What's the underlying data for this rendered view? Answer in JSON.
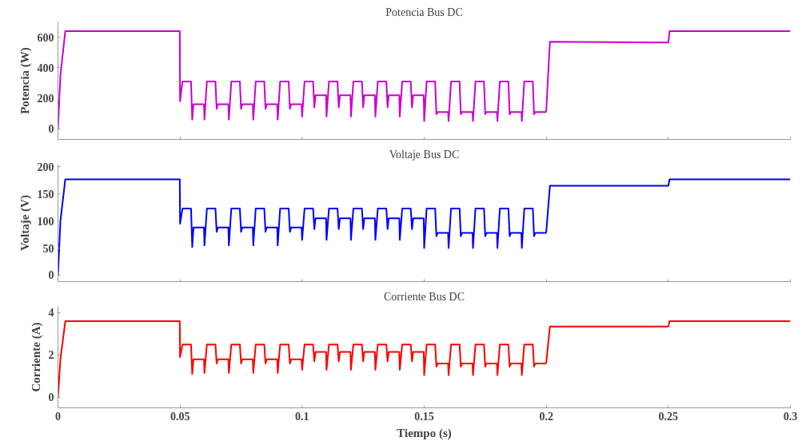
{
  "chart_data": [
    {
      "type": "line",
      "title": "Potencia Bus DC",
      "ylabel": "Potencia (W)",
      "xlim": [
        0,
        0.3
      ],
      "xticks": [
        {
          "value": 0,
          "label": null
        },
        {
          "value": 0.05,
          "label": null
        },
        {
          "value": 0.1,
          "label": null
        },
        {
          "value": 0.15,
          "label": null
        },
        {
          "value": 0.2,
          "label": null
        },
        {
          "value": 0.25,
          "label": null
        },
        {
          "value": 0.3,
          "label": null
        }
      ],
      "ylim": [
        -70,
        700
      ],
      "yticks": [
        0,
        200,
        400,
        600
      ],
      "tick_labels": "y",
      "grid": false,
      "x": [
        0,
        0.001,
        0.003,
        0.0499,
        0.05,
        0.051,
        0.0545,
        0.055,
        0.0555,
        0.0598,
        0.06,
        0.061,
        0.0645,
        0.065,
        0.0655,
        0.0698,
        0.07,
        0.071,
        0.0745,
        0.075,
        0.0755,
        0.0798,
        0.08,
        0.081,
        0.0845,
        0.085,
        0.0855,
        0.0898,
        0.09,
        0.091,
        0.0945,
        0.095,
        0.0955,
        0.0998,
        0.1,
        0.101,
        0.1045,
        0.105,
        0.1055,
        0.1098,
        0.11,
        0.111,
        0.1145,
        0.115,
        0.1155,
        0.1198,
        0.12,
        0.121,
        0.1245,
        0.125,
        0.1255,
        0.1298,
        0.13,
        0.131,
        0.1345,
        0.135,
        0.1355,
        0.1398,
        0.14,
        0.141,
        0.1445,
        0.145,
        0.1455,
        0.1498,
        0.15,
        0.151,
        0.1545,
        0.155,
        0.1555,
        0.1598,
        0.16,
        0.161,
        0.1645,
        0.165,
        0.1655,
        0.1698,
        0.17,
        0.171,
        0.1745,
        0.175,
        0.1755,
        0.1798,
        0.18,
        0.181,
        0.1845,
        0.185,
        0.1855,
        0.1898,
        0.19,
        0.191,
        0.1945,
        0.195,
        0.1955,
        0.1998,
        0.2,
        0.2015,
        0.25,
        0.2505,
        0.3
      ],
      "series": [
        {
          "color": "#cc00cc",
          "values": [
            0,
            350,
            640,
            640,
            180,
            310,
            310,
            60,
            160,
            160,
            60,
            310,
            310,
            130,
            160,
            160,
            60,
            310,
            310,
            130,
            160,
            160,
            60,
            310,
            310,
            130,
            160,
            160,
            60,
            310,
            310,
            130,
            160,
            160,
            80,
            310,
            310,
            140,
            220,
            220,
            80,
            310,
            310,
            140,
            220,
            220,
            80,
            310,
            310,
            140,
            220,
            220,
            80,
            310,
            310,
            140,
            220,
            220,
            80,
            310,
            310,
            140,
            220,
            220,
            50,
            310,
            310,
            95,
            110,
            110,
            50,
            310,
            310,
            95,
            110,
            110,
            50,
            310,
            310,
            95,
            110,
            110,
            50,
            310,
            310,
            95,
            110,
            110,
            50,
            310,
            310,
            95,
            110,
            110,
            120,
            570,
            565,
            640,
            640
          ]
        }
      ]
    },
    {
      "type": "line",
      "title": "Voltaje Bus DC",
      "ylabel": "Voltaje (V)",
      "xlim": [
        0,
        0.3
      ],
      "xticks": [
        {
          "value": 0,
          "label": null
        },
        {
          "value": 0.05,
          "label": null
        },
        {
          "value": 0.1,
          "label": null
        },
        {
          "value": 0.15,
          "label": null
        },
        {
          "value": 0.2,
          "label": null
        },
        {
          "value": 0.25,
          "label": null
        },
        {
          "value": 0.3,
          "label": null
        }
      ],
      "ylim": [
        -12,
        205
      ],
      "yticks": [
        0,
        50,
        100,
        150,
        200
      ],
      "tick_labels": "y",
      "grid": false,
      "x": [
        0,
        0.001,
        0.003,
        0.0499,
        0.05,
        0.051,
        0.0545,
        0.055,
        0.0555,
        0.0598,
        0.06,
        0.061,
        0.0645,
        0.065,
        0.0655,
        0.0698,
        0.07,
        0.071,
        0.0745,
        0.075,
        0.0755,
        0.0798,
        0.08,
        0.081,
        0.0845,
        0.085,
        0.0855,
        0.0898,
        0.09,
        0.091,
        0.0945,
        0.095,
        0.0955,
        0.0998,
        0.1,
        0.101,
        0.1045,
        0.105,
        0.1055,
        0.1098,
        0.11,
        0.111,
        0.1145,
        0.115,
        0.1155,
        0.1198,
        0.12,
        0.121,
        0.1245,
        0.125,
        0.1255,
        0.1298,
        0.13,
        0.131,
        0.1345,
        0.135,
        0.1355,
        0.1398,
        0.14,
        0.141,
        0.1445,
        0.145,
        0.1455,
        0.1498,
        0.15,
        0.151,
        0.1545,
        0.155,
        0.1555,
        0.1598,
        0.16,
        0.161,
        0.1645,
        0.165,
        0.1655,
        0.1698,
        0.17,
        0.171,
        0.1745,
        0.175,
        0.1755,
        0.1798,
        0.18,
        0.181,
        0.1845,
        0.185,
        0.1855,
        0.1898,
        0.19,
        0.191,
        0.1945,
        0.195,
        0.1955,
        0.1998,
        0.2,
        0.2015,
        0.25,
        0.2505,
        0.3
      ],
      "series": [
        {
          "color": "#0000ff",
          "values": [
            0,
            100,
            177,
            177,
            95,
            123,
            123,
            52,
            88,
            88,
            55,
            123,
            123,
            80,
            88,
            88,
            55,
            123,
            123,
            80,
            88,
            88,
            55,
            123,
            123,
            80,
            88,
            88,
            55,
            123,
            123,
            80,
            88,
            88,
            65,
            123,
            123,
            85,
            105,
            105,
            65,
            123,
            123,
            85,
            105,
            105,
            65,
            123,
            123,
            85,
            105,
            105,
            65,
            123,
            123,
            85,
            105,
            105,
            65,
            123,
            123,
            85,
            105,
            105,
            50,
            123,
            123,
            72,
            78,
            78,
            50,
            123,
            123,
            72,
            78,
            78,
            50,
            123,
            123,
            72,
            78,
            78,
            50,
            123,
            123,
            72,
            78,
            78,
            50,
            123,
            123,
            72,
            78,
            78,
            80,
            165,
            165,
            177,
            177
          ]
        }
      ]
    },
    {
      "type": "line",
      "title": "Corriente Bus DC",
      "xlabel": "Tiempo (s)",
      "ylabel": "Corriente (A)",
      "xlim": [
        0,
        0.3
      ],
      "xticks": [
        {
          "value": 0,
          "label": "0"
        },
        {
          "value": 0.05,
          "label": "0.05"
        },
        {
          "value": 0.1,
          "label": "0.1"
        },
        {
          "value": 0.15,
          "label": "0.15"
        },
        {
          "value": 0.2,
          "label": "0.2"
        },
        {
          "value": 0.25,
          "label": "0.25"
        },
        {
          "value": 0.3,
          "label": "0.3"
        }
      ],
      "ylim": [
        -0.5,
        4.3
      ],
      "yticks": [
        0,
        2,
        4
      ],
      "grid": false,
      "x": [
        0,
        0.001,
        0.003,
        0.0499,
        0.05,
        0.051,
        0.0545,
        0.055,
        0.0555,
        0.0598,
        0.06,
        0.061,
        0.0645,
        0.065,
        0.0655,
        0.0698,
        0.07,
        0.071,
        0.0745,
        0.075,
        0.0755,
        0.0798,
        0.08,
        0.081,
        0.0845,
        0.085,
        0.0855,
        0.0898,
        0.09,
        0.091,
        0.0945,
        0.095,
        0.0955,
        0.0998,
        0.1,
        0.101,
        0.1045,
        0.105,
        0.1055,
        0.1098,
        0.11,
        0.111,
        0.1145,
        0.115,
        0.1155,
        0.1198,
        0.12,
        0.121,
        0.1245,
        0.125,
        0.1255,
        0.1298,
        0.13,
        0.131,
        0.1345,
        0.135,
        0.1355,
        0.1398,
        0.14,
        0.141,
        0.1445,
        0.145,
        0.1455,
        0.1498,
        0.15,
        0.151,
        0.1545,
        0.155,
        0.1555,
        0.1598,
        0.16,
        0.161,
        0.1645,
        0.165,
        0.1655,
        0.1698,
        0.17,
        0.171,
        0.1745,
        0.175,
        0.1755,
        0.1798,
        0.18,
        0.181,
        0.1845,
        0.185,
        0.1855,
        0.1898,
        0.19,
        0.191,
        0.1945,
        0.195,
        0.1955,
        0.1998,
        0.2,
        0.2015,
        0.25,
        0.2505,
        0.3
      ],
      "series": [
        {
          "color": "#ff0000",
          "values": [
            0,
            1.8,
            3.6,
            3.6,
            1.9,
            2.5,
            2.5,
            1.1,
            1.8,
            1.8,
            1.15,
            2.5,
            2.5,
            1.6,
            1.8,
            1.8,
            1.15,
            2.5,
            2.5,
            1.6,
            1.8,
            1.8,
            1.15,
            2.5,
            2.5,
            1.6,
            1.8,
            1.8,
            1.15,
            2.5,
            2.5,
            1.6,
            1.8,
            1.8,
            1.3,
            2.5,
            2.5,
            1.7,
            2.15,
            2.15,
            1.3,
            2.5,
            2.5,
            1.7,
            2.15,
            2.15,
            1.3,
            2.5,
            2.5,
            1.7,
            2.15,
            2.15,
            1.3,
            2.5,
            2.5,
            1.7,
            2.15,
            2.15,
            1.3,
            2.5,
            2.5,
            1.7,
            2.15,
            2.15,
            1.05,
            2.5,
            2.5,
            1.45,
            1.6,
            1.6,
            1.05,
            2.5,
            2.5,
            1.45,
            1.6,
            1.6,
            1.05,
            2.5,
            2.5,
            1.45,
            1.6,
            1.6,
            1.05,
            2.5,
            2.5,
            1.45,
            1.6,
            1.6,
            1.05,
            2.5,
            2.5,
            1.45,
            1.6,
            1.6,
            1.65,
            3.35,
            3.35,
            3.6,
            3.6
          ]
        }
      ]
    }
  ]
}
